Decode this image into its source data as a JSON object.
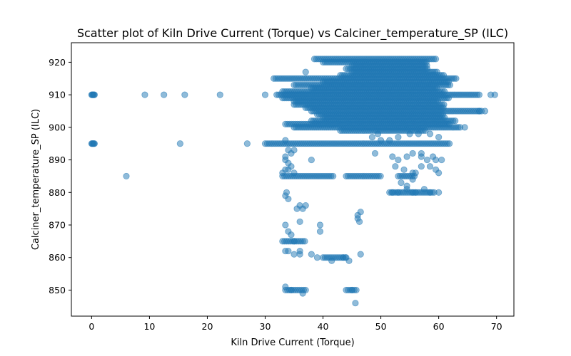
{
  "chart_data": {
    "type": "scatter",
    "title": "Scatter plot of Kiln Drive Current (Torque) vs Calciner_temperature_SP (ILC)",
    "xlabel": "Kiln Drive Current (Torque)",
    "ylabel": "Calciner_temperature_SP (ILC)",
    "xlim": [
      -3.5,
      73
    ],
    "ylim": [
      842,
      926
    ],
    "xticks": [
      0,
      10,
      20,
      30,
      40,
      50,
      60,
      70
    ],
    "yticks": [
      850,
      860,
      870,
      880,
      890,
      900,
      910,
      920
    ],
    "grid": false,
    "color": "#1f77b4",
    "series": [
      {
        "bands": [
          {
            "x_from": 38.5,
            "x_to": 59.5,
            "y": 921,
            "step": 0.35
          },
          {
            "x_from": 40,
            "x_to": 58,
            "y": 920,
            "step": 0.35
          },
          {
            "x_from": 45,
            "x_to": 58,
            "y": 919,
            "step": 0.35
          },
          {
            "x_from": 44,
            "x_to": 58,
            "y": 918,
            "step": 0.35
          },
          {
            "x_from": 45,
            "x_to": 60,
            "y": 917,
            "step": 0.35
          },
          {
            "x_from": 43,
            "x_to": 61,
            "y": 916,
            "step": 0.35
          },
          {
            "x_from": 31.5,
            "x_to": 63,
            "y": 915,
            "step": 0.35
          },
          {
            "x_from": 40,
            "x_to": 62,
            "y": 914,
            "step": 0.35
          },
          {
            "x_from": 35,
            "x_to": 62,
            "y": 913,
            "step": 0.35
          },
          {
            "x_from": 38,
            "x_to": 60,
            "y": 912,
            "step": 0.35
          },
          {
            "x_from": 33,
            "x_to": 61,
            "y": 911,
            "step": 0.35
          },
          {
            "x_from": 32,
            "x_to": 67,
            "y": 910,
            "step": 0.35
          },
          {
            "x_from": 33,
            "x_to": 62,
            "y": 909,
            "step": 0.35
          },
          {
            "x_from": 35,
            "x_to": 60,
            "y": 908,
            "step": 0.35
          },
          {
            "x_from": 35,
            "x_to": 61,
            "y": 907,
            "step": 0.35
          },
          {
            "x_from": 37,
            "x_to": 61,
            "y": 906,
            "step": 0.35
          },
          {
            "x_from": 38,
            "x_to": 67.5,
            "y": 905,
            "step": 0.35
          },
          {
            "x_from": 39,
            "x_to": 61,
            "y": 904,
            "step": 0.35
          },
          {
            "x_from": 40,
            "x_to": 61,
            "y": 903,
            "step": 0.35
          },
          {
            "x_from": 38,
            "x_to": 63,
            "y": 902,
            "step": 0.35
          },
          {
            "x_from": 33.5,
            "x_to": 62,
            "y": 901,
            "step": 0.35
          },
          {
            "x_from": 35,
            "x_to": 64,
            "y": 900,
            "step": 0.35
          },
          {
            "x_from": 43,
            "x_to": 58,
            "y": 899,
            "step": 0.35
          },
          {
            "x_from": 30,
            "x_to": 62,
            "y": 895,
            "step": 0.35
          },
          {
            "x_from": 33,
            "x_to": 42,
            "y": 885,
            "step": 0.35
          },
          {
            "x_from": 44,
            "x_to": 50,
            "y": 885,
            "step": 0.35
          },
          {
            "x_from": 53,
            "x_to": 56,
            "y": 885,
            "step": 0.35
          },
          {
            "x_from": 51.5,
            "x_to": 59.5,
            "y": 880,
            "step": 0.35
          },
          {
            "x_from": 33,
            "x_to": 37,
            "y": 865,
            "step": 0.35
          },
          {
            "x_from": 40,
            "x_to": 44,
            "y": 860,
            "step": 0.35
          },
          {
            "x_from": 33.5,
            "x_to": 37,
            "y": 850,
            "step": 0.35
          },
          {
            "x_from": 44,
            "x_to": 46,
            "y": 850,
            "step": 0.35
          }
        ],
        "x": [
          0.0,
          0.1,
          0.2,
          0.3,
          0.4,
          0.5,
          0.0,
          0.1,
          0.2,
          0.3,
          0.4,
          0.5,
          9.2,
          12.5,
          16.1,
          22.2,
          30.0,
          15.3,
          26.9,
          6.0,
          37.0,
          69.0,
          69.7,
          67.0,
          68.0,
          64.5,
          49.5,
          48.5,
          50.0,
          51.5,
          53.0,
          55.0,
          56.5,
          58.5,
          60.0,
          57.0,
          59.0,
          49.0,
          52.0,
          53.0,
          54.5,
          55.5,
          57.0,
          58.0,
          59.5,
          60.5,
          58.5,
          59.5,
          60.0,
          33.5,
          34.0,
          34.5,
          33.5,
          34.0,
          38.0,
          33.0,
          33.5,
          34.0,
          34.5,
          35.0,
          35.0,
          33.5,
          52.0,
          53.0,
          54.5,
          55.5,
          56.0,
          57.5,
          58.5,
          60.0,
          46.0,
          46.5,
          52.5,
          54.0,
          55.5,
          57.0,
          53.5,
          54.5,
          55.5,
          56.0,
          33.5,
          34.0,
          33.7,
          35.5,
          36.0,
          36.5,
          37.0,
          36.0,
          33.5,
          34.0,
          34.5,
          35.0,
          39.5,
          39.5,
          46.0,
          46.3,
          36.0,
          38.0,
          36.0,
          33.5,
          34.0,
          35.0,
          39.0,
          41.5,
          43.5,
          44.0,
          44.5,
          46.5,
          33.5,
          34.5,
          36.5,
          45.0,
          45.6
        ],
        "y": [
          910,
          910,
          910,
          910,
          910,
          910,
          895,
          895,
          895,
          895,
          895,
          895,
          910,
          910,
          910,
          910,
          910,
          895,
          895,
          885,
          917,
          910,
          910,
          905,
          905,
          900,
          898,
          897,
          896,
          896,
          897,
          898,
          898,
          898,
          897,
          892,
          891,
          892,
          891,
          890,
          891,
          892,
          891,
          890,
          890,
          890,
          888,
          887,
          886,
          896,
          893,
          892,
          890,
          889,
          890,
          886,
          887,
          887,
          888,
          886,
          893,
          891,
          880,
          880,
          881,
          880,
          880,
          881,
          880,
          880,
          873,
          874,
          888,
          887,
          886,
          888,
          883,
          882,
          884,
          886,
          879,
          878,
          880,
          875,
          876,
          875,
          876,
          871,
          870,
          868,
          867,
          865,
          870,
          868,
          872,
          871,
          862,
          861,
          861,
          862,
          862,
          861,
          860,
          859,
          860,
          860,
          859,
          861,
          851,
          850,
          849,
          850,
          846
        ]
      }
    ]
  }
}
